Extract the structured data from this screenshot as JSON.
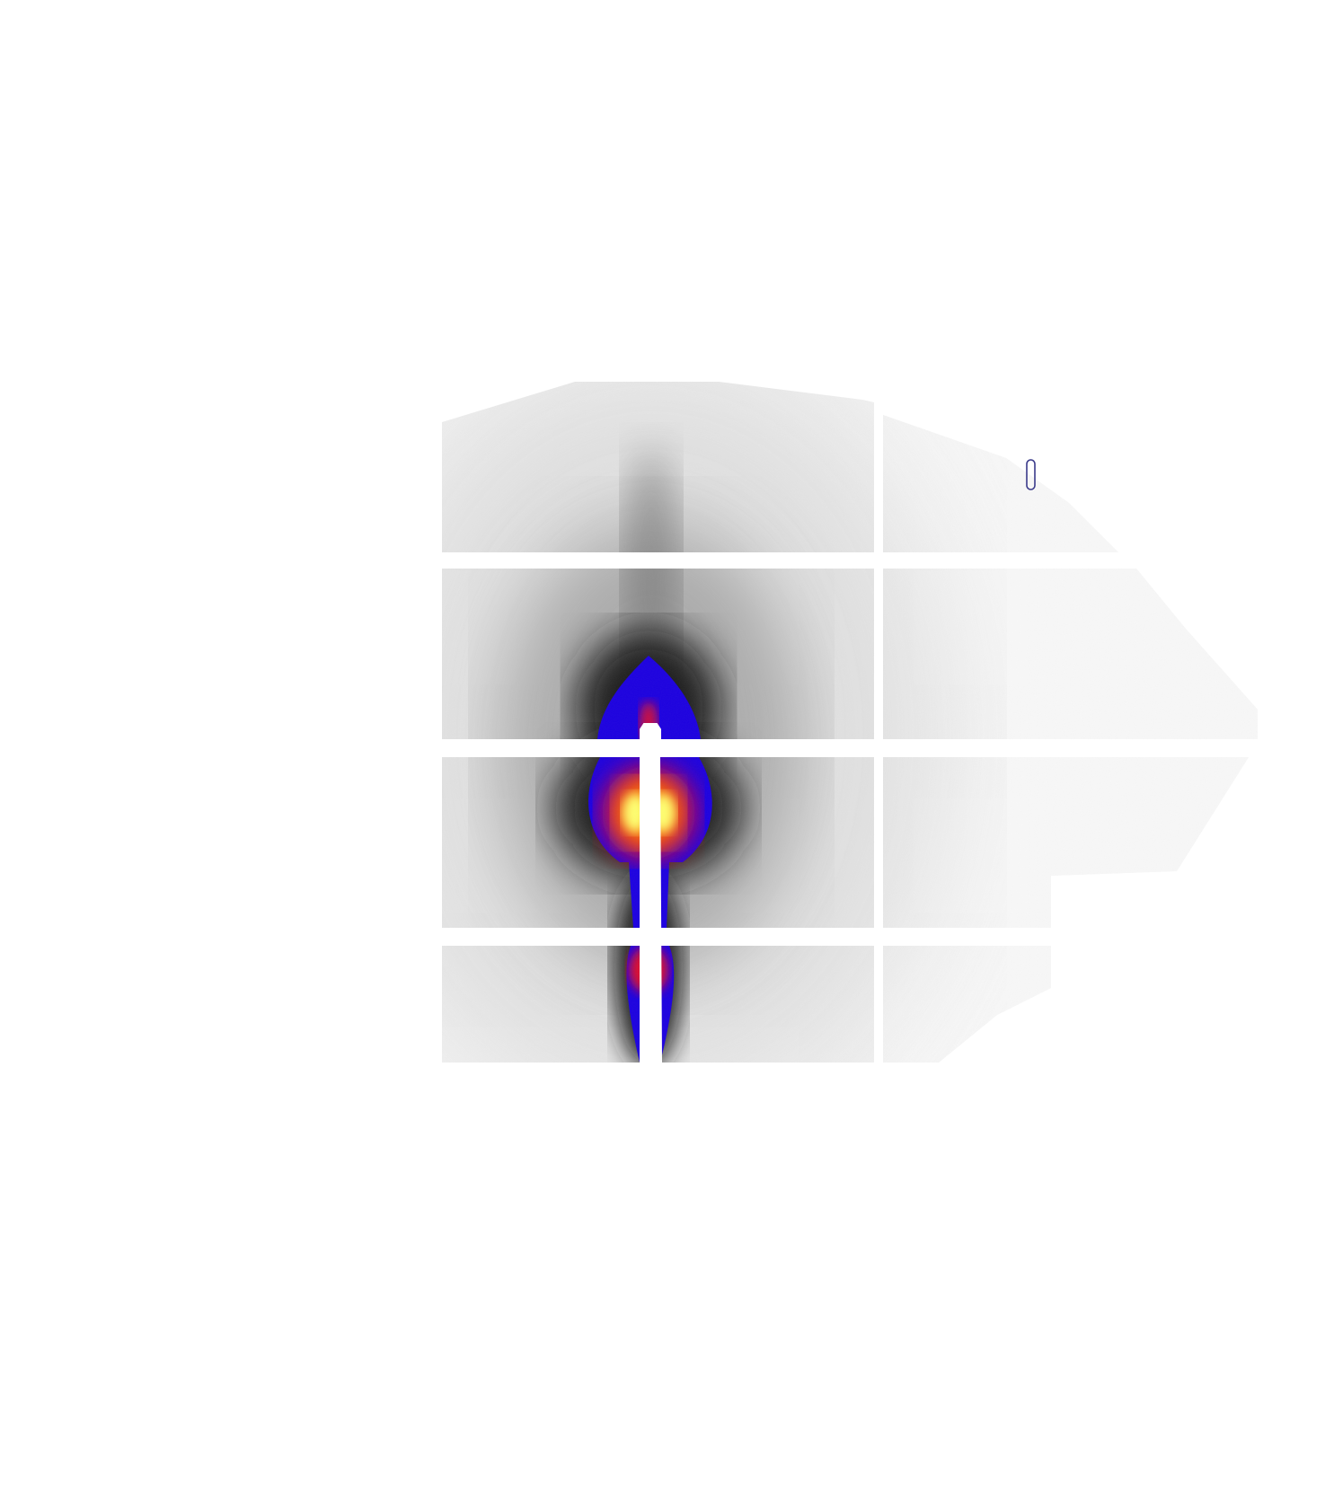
{
  "image": {
    "kind": "x-ray scattering detector pattern",
    "colormap": "inverted gray to blue, red, yellow",
    "background_color": "#ffffff",
    "detector_gap_color": "#ffffff",
    "module_grid": {
      "columns": 2,
      "rows": 4
    },
    "colors": {
      "low": "#f2f2f2",
      "mid": "#000000",
      "blue": "#1a00e6",
      "red": "#ff0000",
      "yellow": "#ffff66",
      "marker_outline": "#3a3a8a"
    },
    "beamstop_present": true,
    "marker_present": true
  }
}
